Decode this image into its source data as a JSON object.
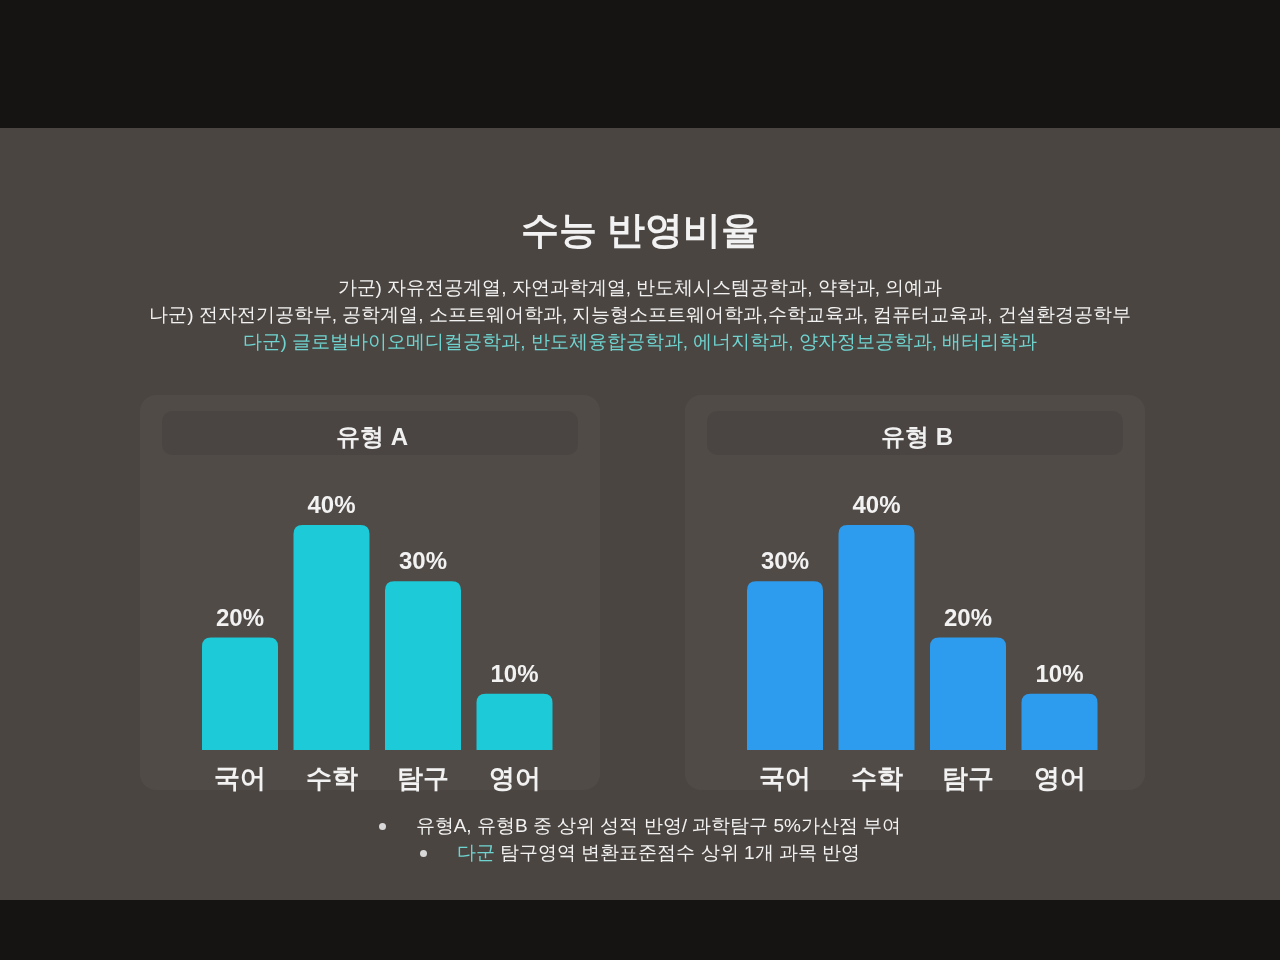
{
  "chart_data": [
    {
      "type": "other",
      "title": "수능 반영비율",
      "subtitle": "가군) 자유전공계열, 자연과학계열, 반도체시스템공학과, 약학과, 의예과\n나군) 전자전기공학부, 공학계열, 소프트웨어학과, 지능형소프트웨어학과,수학교육과, 컴퓨터교육과, 건설환경공학부\n다군) 글로벌바이오메디컬공학과, 반도체융합공학과, 에너지학과, 양자정보공학과, 배터리학과"
    },
    {
      "type": "bar",
      "title": "유형 A",
      "categories": [
        "국어",
        "수학",
        "탐구",
        "영어"
      ],
      "values": [
        20,
        40,
        30,
        10
      ],
      "value_labels": [
        "20%",
        "40%",
        "30%",
        "10%"
      ],
      "color": "#1ccad8"
    },
    {
      "type": "bar",
      "title": "유형 B",
      "categories": [
        "국어",
        "수학",
        "탐구",
        "영어"
      ],
      "values": [
        30,
        40,
        20,
        10
      ],
      "value_labels": [
        "30%",
        "40%",
        "20%",
        "10%"
      ],
      "color": "#2d9cee"
    },
    {
      "type": "other",
      "annotations": [
        "유형A, 유형B 중 상위 성적 반영/ 과학탐구 5%가산점 부여",
        "다군 탐구영역 변환표준점수 상위 1개 과목 반영"
      ]
    }
  ]
}
